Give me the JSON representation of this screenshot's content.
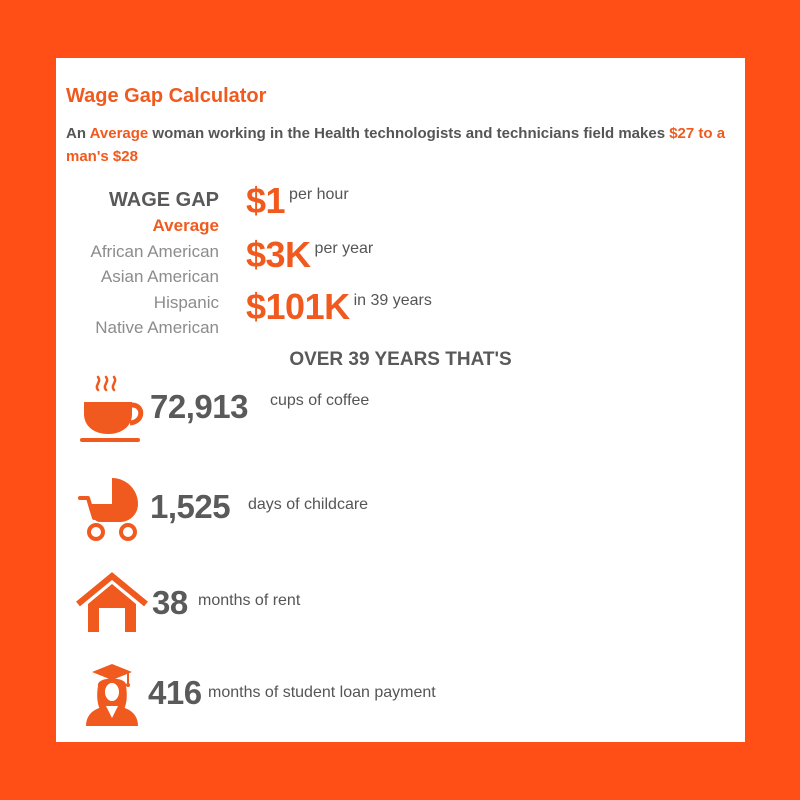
{
  "header": {
    "title": "Wage Gap Calculator",
    "subtitle_parts": {
      "p1": "An ",
      "group": "Average",
      "p2": " woman working in the Health technologists and technicians field makes ",
      "women_wage": "$27 to a man's $28"
    }
  },
  "wage_gap": {
    "heading": "WAGE GAP",
    "options": [
      "Average",
      "African American",
      "Asian American",
      "Hispanic",
      "Native American"
    ],
    "selected": "Average",
    "rows": [
      {
        "value": "$1",
        "unit": "per hour"
      },
      {
        "value": "$3K",
        "unit": "per year"
      },
      {
        "value": "$101K",
        "unit": "in 39 years"
      }
    ]
  },
  "over_years": {
    "heading": "OVER 39 YEARS THAT'S",
    "items": [
      {
        "icon": "coffee-cup-icon",
        "number": "72,913",
        "label": "cups of coffee"
      },
      {
        "icon": "baby-stroller-icon",
        "number": "1,525",
        "label": "days of childcare"
      },
      {
        "icon": "house-icon",
        "number": "38",
        "label": "months of rent"
      },
      {
        "icon": "graduate-icon",
        "number": "416",
        "label": "months of student loan payment"
      }
    ]
  },
  "colors": {
    "accent": "#f05a1e",
    "background": "#ff4f17",
    "card": "#ffffff",
    "text_dark": "#555555",
    "text_muted": "#8c8c8c"
  }
}
